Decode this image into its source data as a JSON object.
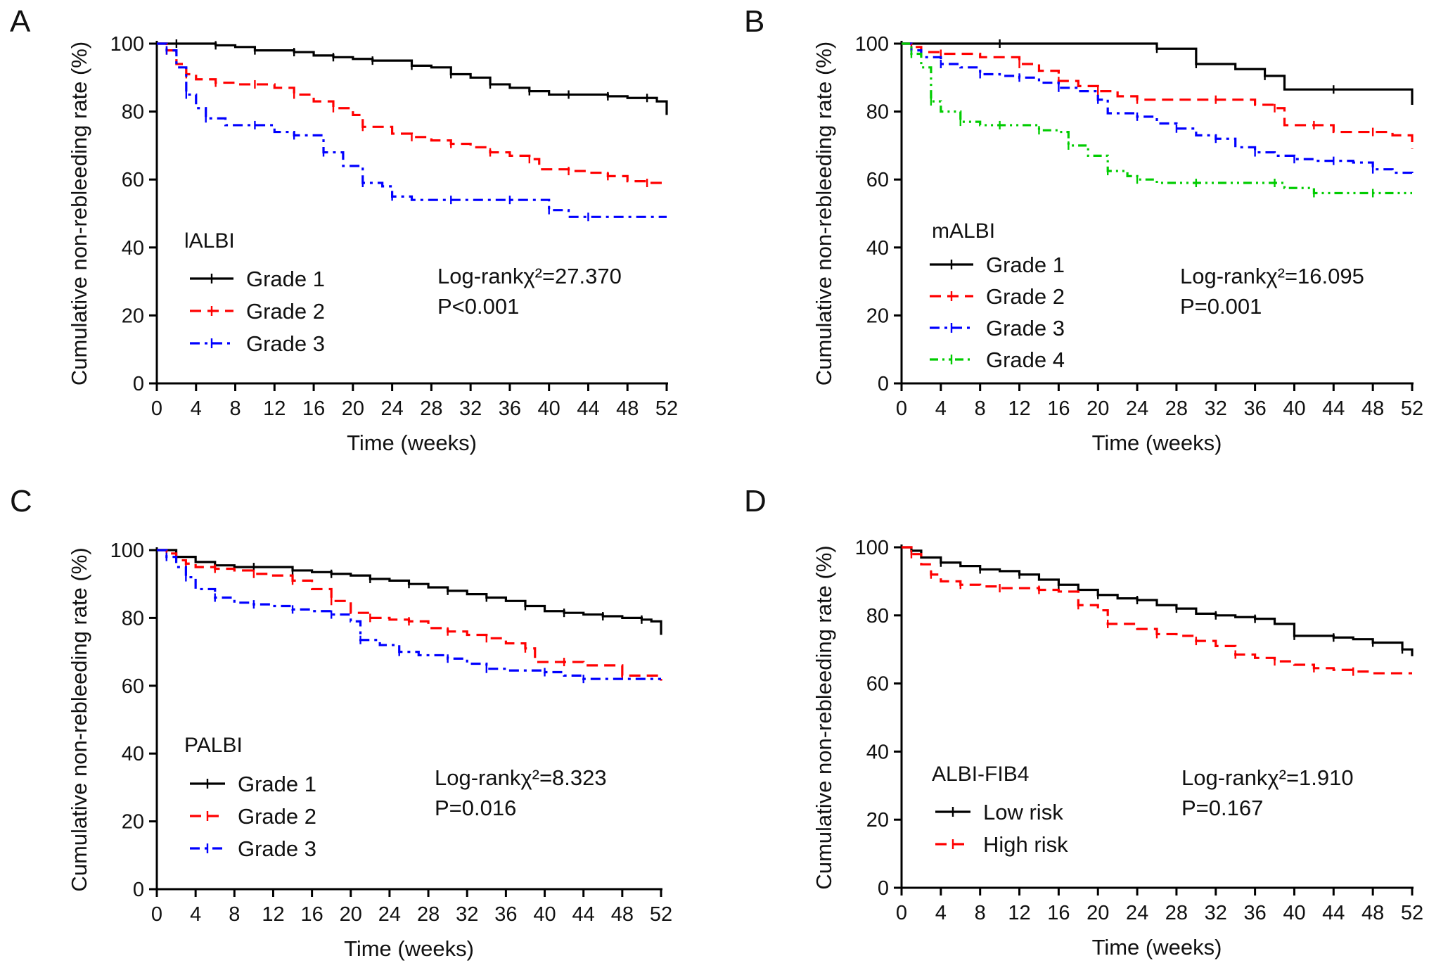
{
  "chart_data": [
    {
      "panel": "A",
      "type": "line",
      "subtype": "kaplan-meier",
      "legend_title": "lALBI",
      "xlabel": "Time (weeks)",
      "ylabel": "Cumulative non-rebleeding rate (%)",
      "xlim": [
        0,
        52
      ],
      "ylim": [
        0,
        100
      ],
      "xticks": [
        0,
        4,
        8,
        12,
        16,
        20,
        24,
        28,
        32,
        36,
        40,
        44,
        48,
        52
      ],
      "yticks": [
        0,
        20,
        40,
        60,
        80,
        100
      ],
      "stat_line1": "Log-rankχ²=27.370",
      "stat_line2": "P<0.001",
      "series": [
        {
          "name": "Grade 1",
          "color": "#000000",
          "dash": "solid",
          "x": [
            0,
            2,
            4,
            6,
            8,
            10,
            12,
            14,
            16,
            18,
            20,
            22,
            24,
            26,
            28,
            30,
            32,
            34,
            36,
            38,
            40,
            42,
            44,
            46,
            48,
            50,
            51,
            52
          ],
          "y": [
            100,
            100,
            100,
            99.5,
            99,
            98,
            98,
            97.5,
            96.5,
            96,
            95.5,
            95,
            95,
            93.5,
            93,
            91,
            90,
            88,
            87,
            86,
            85,
            85,
            85,
            84.5,
            84,
            84,
            83,
            79
          ]
        },
        {
          "name": "Grade 2",
          "color": "#ff0000",
          "dash": "dash",
          "x": [
            0,
            1,
            2,
            3,
            4,
            6,
            8,
            10,
            12,
            14,
            16,
            18,
            20,
            21,
            24,
            26,
            28,
            30,
            32,
            34,
            36,
            38,
            39,
            42,
            44,
            46,
            48,
            50,
            52
          ],
          "y": [
            100,
            98,
            94,
            91,
            89.5,
            88.5,
            88,
            88,
            87,
            85,
            83,
            81,
            79,
            75.5,
            73.5,
            72.5,
            71.5,
            70.5,
            69.5,
            68,
            67,
            66,
            63,
            62.5,
            62,
            61,
            59.5,
            59,
            59
          ]
        },
        {
          "name": "Grade 3",
          "color": "#0000ff",
          "dash": "dashdot",
          "x": [
            0,
            1,
            2,
            3,
            4,
            5,
            7,
            10,
            12,
            14,
            16,
            17,
            19,
            21,
            23,
            24,
            26,
            30,
            34,
            36,
            38,
            40,
            42,
            44,
            48,
            52
          ],
          "y": [
            100,
            98,
            93,
            85,
            81,
            78,
            76,
            76,
            74,
            73,
            73,
            68,
            64,
            59,
            58,
            55,
            54,
            54,
            54,
            54,
            54,
            51,
            49,
            49,
            49,
            49
          ]
        }
      ]
    },
    {
      "panel": "B",
      "type": "line",
      "subtype": "kaplan-meier",
      "legend_title": "mALBI",
      "xlabel": "Time (weeks)",
      "ylabel": "Cumulative non-rebleeding rate (%)",
      "xlim": [
        0,
        52
      ],
      "ylim": [
        0,
        100
      ],
      "xticks": [
        0,
        4,
        8,
        12,
        16,
        20,
        24,
        28,
        32,
        36,
        40,
        44,
        48,
        52
      ],
      "yticks": [
        0,
        20,
        40,
        60,
        80,
        100
      ],
      "stat_line1": "Log-rankχ²=16.095",
      "stat_line2": "P=0.001",
      "series": [
        {
          "name": "Grade 1",
          "color": "#000000",
          "dash": "solid",
          "x": [
            0,
            10,
            20,
            26,
            28,
            30,
            34,
            37,
            39,
            44,
            48,
            52
          ],
          "y": [
            100,
            100,
            100,
            98.5,
            98.5,
            94,
            92.5,
            90.5,
            86.5,
            86.5,
            86.5,
            82
          ]
        },
        {
          "name": "Grade 2",
          "color": "#ff0000",
          "dash": "dash",
          "x": [
            0,
            1,
            2,
            4,
            8,
            12,
            14,
            16,
            18,
            20,
            22,
            24,
            28,
            32,
            36,
            38,
            39,
            42,
            44,
            48,
            50,
            52
          ],
          "y": [
            100,
            99,
            97.5,
            97,
            96,
            94,
            92,
            89,
            87.5,
            86,
            84.5,
            83.5,
            83.5,
            83.5,
            82,
            81,
            76,
            76,
            74,
            74,
            73,
            69
          ]
        },
        {
          "name": "Grade 3",
          "color": "#0000ff",
          "dash": "dashdot",
          "x": [
            0,
            1,
            2,
            4,
            6,
            8,
            10,
            12,
            14,
            16,
            18,
            20,
            21,
            24,
            26,
            28,
            30,
            32,
            34,
            36,
            38,
            40,
            42,
            44,
            46,
            48,
            50,
            52
          ],
          "y": [
            100,
            98,
            96,
            94,
            93,
            91,
            90.5,
            90,
            88.5,
            87,
            86,
            83.5,
            79.5,
            78.5,
            76.5,
            75,
            73,
            72,
            69.5,
            68,
            67,
            66,
            65.5,
            65.5,
            65,
            63,
            62,
            61
          ]
        },
        {
          "name": "Grade 4",
          "color": "#00cc00",
          "dash": "dashdotdot",
          "x": [
            0,
            1,
            2,
            3,
            4,
            6,
            8,
            10,
            12,
            14,
            16,
            17,
            19,
            21,
            23,
            24,
            26,
            30,
            34,
            38,
            39,
            42,
            44,
            48,
            52
          ],
          "y": [
            100,
            97,
            93,
            83,
            80,
            77,
            76,
            76,
            76,
            74.5,
            74,
            70,
            67,
            62.5,
            61,
            60,
            59,
            59,
            59,
            59,
            57.5,
            56,
            56,
            56,
            56
          ]
        }
      ]
    },
    {
      "panel": "C",
      "type": "line",
      "subtype": "kaplan-meier",
      "legend_title": "PALBI",
      "xlabel": "Time (weeks)",
      "ylabel": "Cumulative non-rebleeding rate (%)",
      "xlim": [
        0,
        52
      ],
      "ylim": [
        0,
        100
      ],
      "xticks": [
        0,
        4,
        8,
        12,
        16,
        20,
        24,
        28,
        32,
        36,
        40,
        44,
        48,
        52
      ],
      "yticks": [
        0,
        20,
        40,
        60,
        80,
        100
      ],
      "stat_line1": "Log-rankχ²=8.323",
      "stat_line2": "P=0.016",
      "series": [
        {
          "name": "Grade 1",
          "color": "#000000",
          "dash": "solid",
          "x": [
            0,
            2,
            4,
            6,
            8,
            10,
            12,
            14,
            16,
            18,
            20,
            22,
            24,
            26,
            28,
            30,
            32,
            34,
            36,
            38,
            40,
            42,
            44,
            46,
            48,
            50,
            51,
            52
          ],
          "y": [
            100,
            98,
            96.5,
            95.5,
            95,
            95,
            95,
            94,
            93.5,
            93,
            92.5,
            91.5,
            91,
            90,
            89,
            88,
            87,
            86,
            85,
            83.5,
            82,
            81.5,
            81,
            80.5,
            80,
            79.5,
            79,
            75
          ]
        },
        {
          "name": "Grade 2",
          "color": "#ff0000",
          "dash": "dash",
          "x": [
            0,
            1,
            2,
            3,
            4,
            6,
            8,
            10,
            12,
            14,
            16,
            18,
            20,
            22,
            24,
            26,
            28,
            30,
            32,
            34,
            36,
            38,
            39,
            42,
            44,
            48,
            52
          ],
          "y": [
            100,
            99,
            97,
            96,
            95,
            94.5,
            94,
            93,
            92.5,
            91,
            88.5,
            85,
            81.5,
            80,
            79.5,
            79,
            77,
            76,
            75,
            74,
            72.5,
            71,
            67,
            67,
            66,
            63,
            61.5
          ]
        },
        {
          "name": "Grade 3",
          "color": "#0000ff",
          "dash": "dashdot",
          "x": [
            0,
            1,
            2,
            3,
            4,
            6,
            8,
            10,
            12,
            14,
            16,
            18,
            20,
            21,
            23,
            25,
            27,
            30,
            32,
            34,
            36,
            40,
            42,
            44,
            48,
            52
          ],
          "y": [
            100,
            98,
            95,
            92,
            88.5,
            86,
            84.5,
            84,
            83.5,
            82.5,
            82,
            81,
            79,
            73.5,
            72,
            70,
            69,
            68,
            66.5,
            65,
            64.5,
            64,
            63,
            62,
            62,
            62
          ]
        }
      ]
    },
    {
      "panel": "D",
      "type": "line",
      "subtype": "kaplan-meier",
      "legend_title": "ALBI-FIB4",
      "xlabel": "Time (weeks)",
      "ylabel": "Cumulative non-rebleeding rate (%)",
      "xlim": [
        0,
        52
      ],
      "ylim": [
        0,
        100
      ],
      "xticks": [
        0,
        4,
        8,
        12,
        16,
        20,
        24,
        28,
        32,
        36,
        40,
        44,
        48,
        52
      ],
      "yticks": [
        0,
        20,
        40,
        60,
        80,
        100
      ],
      "stat_line1": "Log-rankχ²=1.910",
      "stat_line2": "P=0.167",
      "series": [
        {
          "name": "Low risk",
          "color": "#000000",
          "dash": "solid",
          "x": [
            0,
            1,
            2,
            4,
            6,
            8,
            10,
            12,
            14,
            16,
            18,
            20,
            22,
            24,
            26,
            28,
            30,
            32,
            34,
            36,
            38,
            40,
            42,
            44,
            46,
            48,
            50,
            51,
            52
          ],
          "y": [
            100,
            99,
            97,
            95.5,
            94.5,
            93.5,
            93,
            92,
            90.5,
            89,
            87.5,
            86,
            85,
            84.5,
            83,
            82,
            80.5,
            80,
            79.5,
            79,
            77.5,
            74,
            74,
            73.5,
            73,
            72,
            72,
            70,
            68
          ]
        },
        {
          "name": "High risk",
          "color": "#ff0000",
          "dash": "dash",
          "x": [
            0,
            1,
            2,
            3,
            4,
            6,
            8,
            10,
            12,
            14,
            16,
            18,
            20,
            21,
            24,
            26,
            28,
            30,
            32,
            34,
            36,
            38,
            40,
            42,
            44,
            46,
            48,
            52
          ],
          "y": [
            100,
            98,
            95,
            92,
            90,
            89,
            88.5,
            88,
            88,
            87.5,
            87,
            83,
            81.5,
            77.5,
            76,
            74.5,
            74,
            72.5,
            71,
            68.5,
            67.5,
            66.5,
            65.5,
            64.5,
            64,
            63.5,
            63,
            63
          ]
        }
      ]
    }
  ]
}
